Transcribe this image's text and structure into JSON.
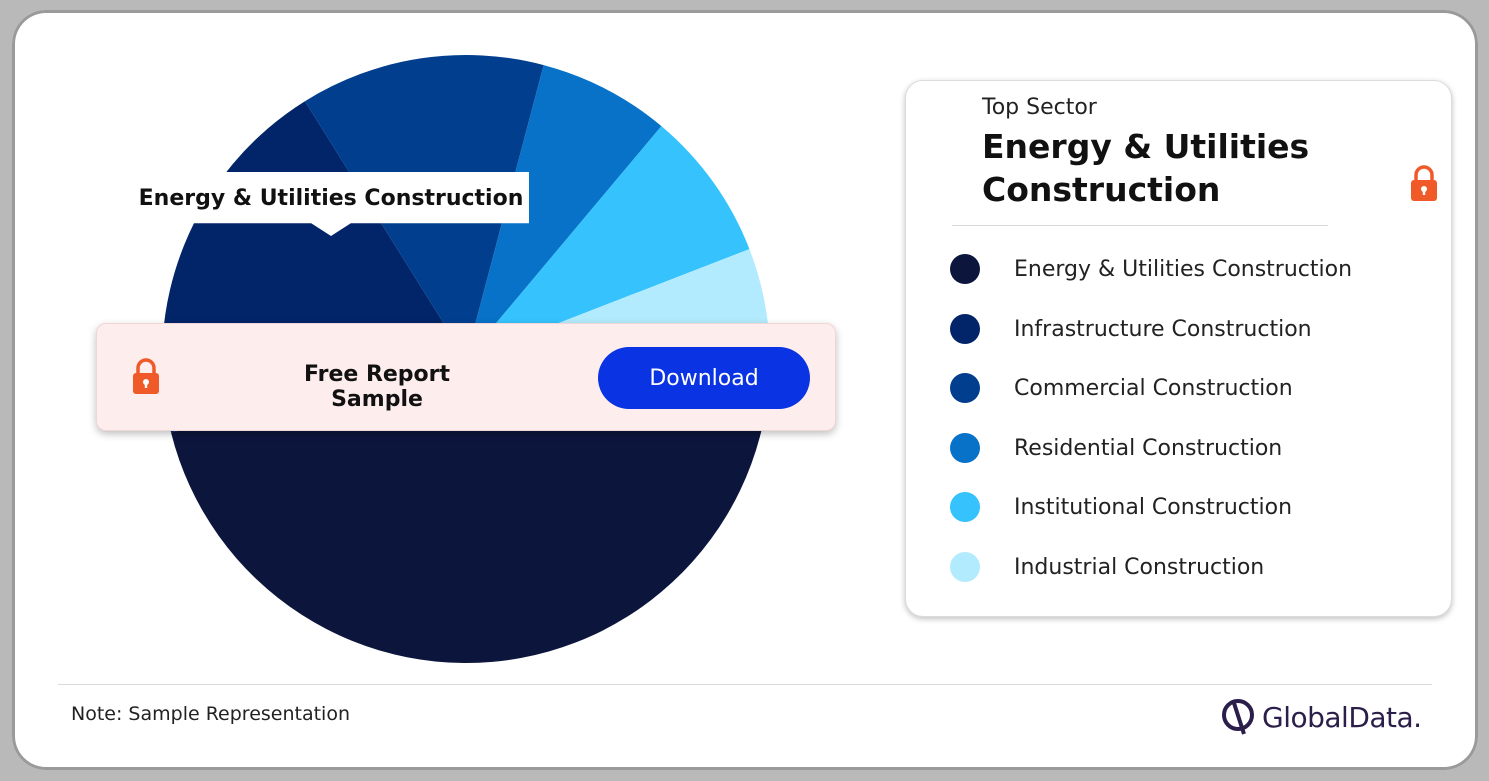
{
  "chart_data": {
    "type": "pie",
    "title": "",
    "series": [
      {
        "name": "Energy & Utilities Construction",
        "value": 48,
        "color": "#0c163d"
      },
      {
        "name": "Infrastructure Construction",
        "value": 20,
        "color": "#022569"
      },
      {
        "name": "Commercial Construction",
        "value": 13,
        "color": "#013f8e"
      },
      {
        "name": "Residential Construction",
        "value": 7,
        "color": "#0872c9"
      },
      {
        "name": "Institutional Construction",
        "value": 8,
        "color": "#36c3fd"
      },
      {
        "name": "Industrial Construction",
        "value": 4,
        "color": "#b3ebfe"
      }
    ],
    "slice_label": "Energy & Utilities Construction"
  },
  "banner": {
    "title": "Free Report Sample",
    "download_label": "Download",
    "lock_color": "#f05a28",
    "button_color": "#0a33e3"
  },
  "legend_card": {
    "top_label": "Top Sector",
    "top_value": "Energy & Utilities Construction"
  },
  "footer": {
    "note": "Note: Sample Representation",
    "brand": "GlobalData."
  },
  "icons": [
    "lock-icon",
    "globaldata-logo-icon"
  ]
}
